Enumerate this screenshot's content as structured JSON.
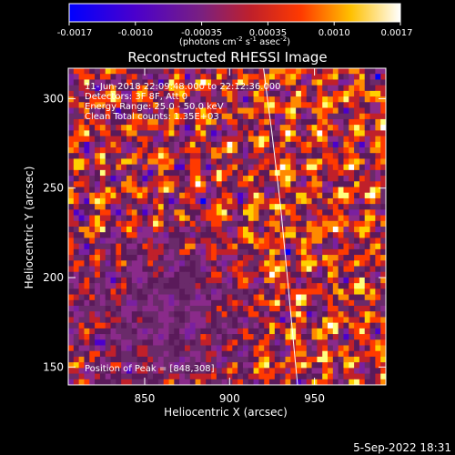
{
  "chart_data": {
    "type": "heatmap",
    "title": "Reconstructed RHESSI Image",
    "xlabel": "Heliocentric X (arcsec)",
    "ylabel": "Heliocentric Y (arcsec)",
    "xlim": [
      805,
      992
    ],
    "ylim": [
      140,
      317
    ],
    "xticks": [
      850,
      900,
      950
    ],
    "yticks": [
      150,
      200,
      250,
      300
    ],
    "colorbar": {
      "ticks": [
        "-0.0017",
        "-0.0010",
        "-0.00035",
        "0.00035",
        "0.0010",
        "0.0017"
      ],
      "range": [
        -0.0017,
        0.0017
      ],
      "units_prefix": "(photons cm",
      "units_exp1": "-2",
      "units_mid": " s",
      "units_exp2": "-1",
      "units_mid2": " asec",
      "units_exp3": "-2",
      "units_suffix": ")"
    },
    "annotations": {
      "time_range": "11-Jun-2018 22:09:48.000 to 22:12:36.000",
      "detectors": "Detectors: 3F 8F, Att 0",
      "energy": "Energy Range: 25.0 - 50.0 keV",
      "method": "Clean     Total counts: 1.35E+03",
      "peak": "Position of Peak = [848,308]"
    },
    "limb_curve": [
      [
        920,
        317
      ],
      [
        925,
        280
      ],
      [
        930,
        240
      ],
      [
        934,
        200
      ],
      [
        938,
        160
      ],
      [
        940,
        140
      ]
    ],
    "grid": false,
    "grid_cells": {
      "nx": 60,
      "ny": 56
    },
    "colormap": [
      "#0000ff",
      "#4b00cc",
      "#7a20a0",
      "#8a2a8a",
      "#6a2a6a",
      "#5a1a5a",
      "#c0202a",
      "#ff3a00",
      "#ff8a00",
      "#ffd000",
      "#ffff80",
      "#ffffff"
    ]
  },
  "footer": {
    "date": "5-Sep-2022 18:31"
  }
}
